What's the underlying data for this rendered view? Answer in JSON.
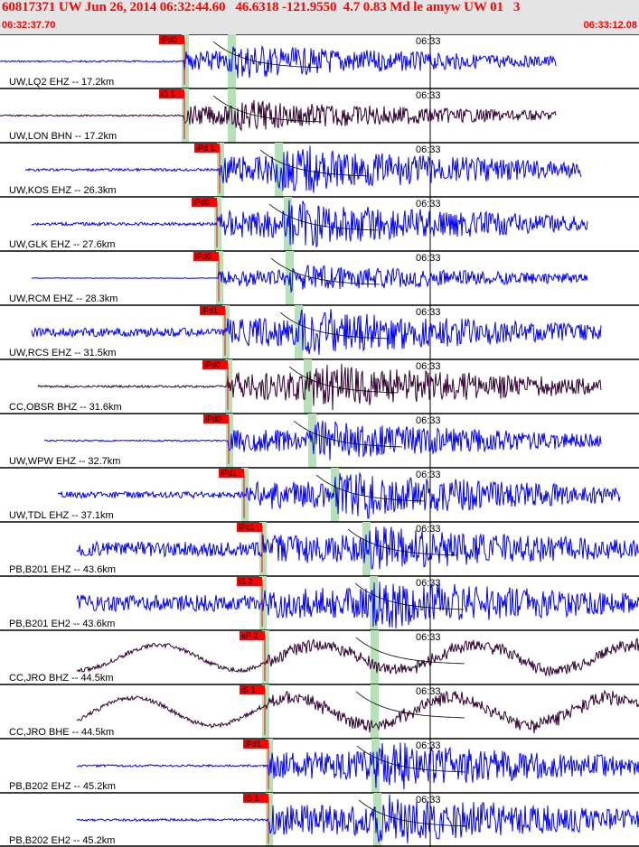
{
  "header": {
    "title": "60817371 UW Jun 26, 2014 06:32:44.60   46.6318 -121.9550  4.7 0.83 Md le amyw UW 01   3",
    "start_time": "06:32:37.70",
    "end_time": "06:33:12.08"
  },
  "minute_label": "06:33",
  "colors": {
    "title": "#ff0000",
    "header_bg": "#e4e4e4",
    "ehz": "#0000ff",
    "bhz": "#300030",
    "pick_box": "#ff0000",
    "shade": "#b8e0b8"
  },
  "traces": [
    {
      "label": "UW,LQ2 EHZ -- 17.2km",
      "pick": "iPd0",
      "color": "#0000ff",
      "p": 0.05,
      "s": 0.3,
      "amp": 18,
      "lowfreq": false,
      "start": 0.0,
      "end": 0.87
    },
    {
      "label": "UW,LON BHN -- 17.2km",
      "pick": "iS 1",
      "color": "#300030",
      "p": 0.05,
      "s": 0.3,
      "amp": 16,
      "lowfreq": false,
      "start": 0.0,
      "end": 0.87
    },
    {
      "label": "UW,KOS EHZ -- 26.3km",
      "pick": "iPd 1",
      "color": "#0000ff",
      "p": 0.06,
      "s": 0.3,
      "amp": 24,
      "lowfreq": false,
      "start": 0.04,
      "end": 0.91
    },
    {
      "label": "UW,GLK EHZ -- 27.6km",
      "pick": "iPd0",
      "color": "#0000ff",
      "p": 0.07,
      "s": 0.3,
      "amp": 24,
      "lowfreq": false,
      "start": 0.05,
      "end": 0.92
    },
    {
      "label": "UW,RCM EHZ -- 28.3km",
      "pick": "iPd0",
      "color": "#0000ff",
      "p": 0.02,
      "s": 0.25,
      "amp": 14,
      "lowfreq": false,
      "start": 0.05,
      "end": 0.92
    },
    {
      "label": "UW,RCS EHZ -- 31.5km",
      "pick": "iPd1",
      "color": "#0000ff",
      "p": 0.2,
      "s": 0.45,
      "amp": 24,
      "lowfreq": false,
      "start": 0.05,
      "end": 0.94
    },
    {
      "label": "CC,OBSR BHZ -- 31.6km",
      "pick": "iPd0",
      "color": "#300030",
      "p": 0.05,
      "s": 0.3,
      "amp": 24,
      "lowfreq": false,
      "start": 0.06,
      "end": 0.94
    },
    {
      "label": "UW,WPW EHZ -- 32.7km",
      "pick": "iPd0",
      "color": "#0000ff",
      "p": 0.04,
      "s": 0.2,
      "amp": 20,
      "lowfreq": false,
      "start": 0.07,
      "end": 0.94
    },
    {
      "label": "UW,TDL EHZ -- 37.1km",
      "pick": "iPd1",
      "color": "#0000ff",
      "p": 0.15,
      "s": 0.55,
      "amp": 24,
      "lowfreq": false,
      "start": 0.09,
      "end": 0.97
    },
    {
      "label": "PB,B201 EHZ -- 43.6km",
      "pick": "iPc1",
      "color": "#0000ff",
      "p": 0.35,
      "s": 0.65,
      "amp": 24,
      "lowfreq": false,
      "start": 0.12,
      "end": 1.0
    },
    {
      "label": "PB,B201 EH2 -- 43.6km",
      "pick": "iS 2",
      "color": "#0000ff",
      "p": 0.35,
      "s": 0.75,
      "amp": 26,
      "lowfreq": false,
      "start": 0.12,
      "end": 1.0
    },
    {
      "label": "CC,JRO BHZ -- 44.5km",
      "pick": "eP 2",
      "color": "#300030",
      "p": 0.4,
      "s": 0.6,
      "amp": 20,
      "lowfreq": true,
      "start": 0.12,
      "end": 1.0
    },
    {
      "label": "CC,JRO BHE -- 44.5km",
      "pick": "iS 1",
      "color": "#300030",
      "p": 0.4,
      "s": 0.6,
      "amp": 22,
      "lowfreq": true,
      "start": 0.12,
      "end": 1.0
    },
    {
      "label": "PB,B202 EHZ -- 45.2km",
      "pick": "iPd1",
      "color": "#0000ff",
      "p": 0.05,
      "s": 0.45,
      "amp": 24,
      "lowfreq": false,
      "start": 0.12,
      "end": 1.0
    },
    {
      "label": "PB,B202 EH2 -- 45.2km",
      "pick": "iS 1",
      "color": "#0000ff",
      "p": 0.05,
      "s": 0.6,
      "amp": 26,
      "lowfreq": false,
      "start": 0.12,
      "end": 1.0
    }
  ]
}
